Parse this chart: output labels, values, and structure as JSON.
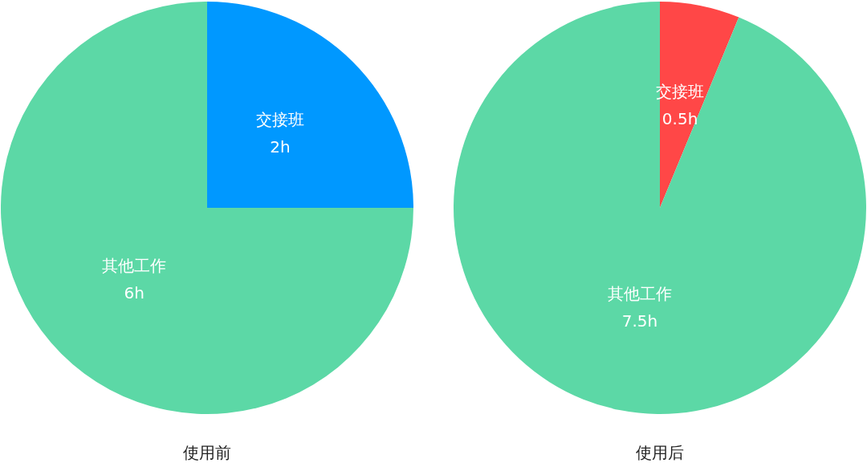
{
  "chart_data": [
    {
      "type": "pie",
      "title": "使用前",
      "categories": [
        "交接班",
        "其他工作"
      ],
      "values": [
        2,
        6
      ],
      "value_labels": [
        "2h",
        "6h"
      ],
      "colors": [
        "#0098ff",
        "#5cd8a6"
      ],
      "legend": false
    },
    {
      "type": "pie",
      "title": "使用后",
      "categories": [
        "交接班",
        "其他工作"
      ],
      "values": [
        0.5,
        7.5
      ],
      "value_labels": [
        "0.5h",
        "7.5h"
      ],
      "colors": [
        "#ff4747",
        "#5cd8a6"
      ],
      "legend": false
    }
  ]
}
